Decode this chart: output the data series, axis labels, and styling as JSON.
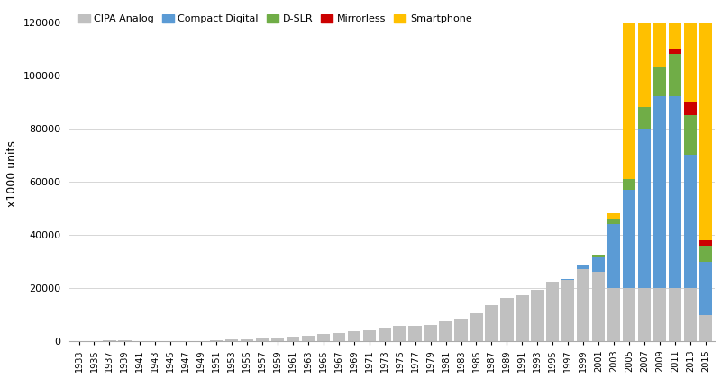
{
  "years": [
    1933,
    1935,
    1937,
    1939,
    1941,
    1943,
    1945,
    1947,
    1949,
    1951,
    1953,
    1955,
    1957,
    1959,
    1961,
    1963,
    1965,
    1967,
    1969,
    1971,
    1973,
    1975,
    1977,
    1979,
    1981,
    1983,
    1985,
    1987,
    1989,
    1991,
    1993,
    1995,
    1997,
    1999,
    2001,
    2003,
    2005,
    2007,
    2009,
    2011,
    2013,
    2015
  ],
  "cipa_analog": [
    100,
    200,
    300,
    400,
    200,
    100,
    100,
    150,
    250,
    500,
    700,
    900,
    1100,
    1400,
    1800,
    2200,
    2800,
    3200,
    3800,
    4200,
    5200,
    5800,
    5800,
    6200,
    7500,
    8500,
    10500,
    13500,
    16500,
    17500,
    19500,
    22500,
    23000,
    27000,
    26000,
    20000,
    20000,
    20000,
    20000,
    20000,
    20000,
    10000
  ],
  "compact_digital": [
    0,
    0,
    0,
    0,
    0,
    0,
    0,
    0,
    0,
    0,
    0,
    0,
    0,
    0,
    0,
    0,
    0,
    0,
    0,
    0,
    0,
    0,
    0,
    0,
    0,
    0,
    0,
    0,
    0,
    0,
    0,
    0,
    500,
    2000,
    6000,
    24000,
    37000,
    60000,
    72000,
    72000,
    50000,
    20000
  ],
  "dslr": [
    0,
    0,
    0,
    0,
    0,
    0,
    0,
    0,
    0,
    0,
    0,
    0,
    0,
    0,
    0,
    0,
    0,
    0,
    0,
    0,
    0,
    0,
    0,
    0,
    0,
    0,
    0,
    0,
    0,
    0,
    0,
    0,
    0,
    0,
    500,
    2000,
    4000,
    8000,
    11000,
    16000,
    15000,
    6000
  ],
  "mirrorless": [
    0,
    0,
    0,
    0,
    0,
    0,
    0,
    0,
    0,
    0,
    0,
    0,
    0,
    0,
    0,
    0,
    0,
    0,
    0,
    0,
    0,
    0,
    0,
    0,
    0,
    0,
    0,
    0,
    0,
    0,
    0,
    0,
    0,
    0,
    0,
    0,
    0,
    0,
    0,
    2000,
    5000,
    2000
  ],
  "smartphone_on_stack": [
    0,
    0,
    0,
    0,
    0,
    0,
    0,
    0,
    0,
    0,
    0,
    0,
    0,
    0,
    0,
    0,
    0,
    0,
    0,
    0,
    0,
    0,
    0,
    0,
    0,
    0,
    0,
    0,
    0,
    0,
    0,
    0,
    0,
    0,
    0,
    2000,
    0,
    0,
    0,
    0,
    0,
    0
  ],
  "smartphone_bg_years": [
    2005,
    2007,
    2009,
    2011,
    2013,
    2015
  ],
  "smartphone_bg_value": 120000,
  "colors": {
    "cipa_analog": "#c0c0c0",
    "compact_digital": "#5b9bd5",
    "dslr": "#70ad47",
    "mirrorless": "#cc0000",
    "smartphone": "#ffc000"
  },
  "ylabel": "x1000 units",
  "ylim": [
    0,
    126000
  ],
  "yticks": [
    0,
    20000,
    40000,
    60000,
    80000,
    100000,
    120000
  ],
  "legend_labels": [
    "CIPA Analog",
    "Compact Digital",
    "D-SLR",
    "Mirrorless",
    "Smartphone"
  ],
  "background_color": "#ffffff",
  "grid_color": "#d0d0d0"
}
